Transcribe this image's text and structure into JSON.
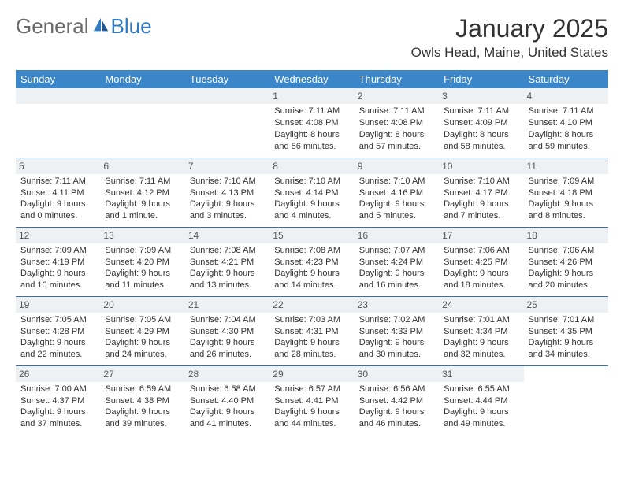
{
  "brand": {
    "word1": "General",
    "word2": "Blue"
  },
  "title": "January 2025",
  "location": "Owls Head, Maine, United States",
  "colors": {
    "header_bg": "#3a86c8",
    "header_text": "#ffffff",
    "daynum_bg": "#eef1f4",
    "rule": "#3a6ea5",
    "brand_gray": "#6a6a6a",
    "brand_blue": "#2f7bc1"
  },
  "weekdays": [
    "Sunday",
    "Monday",
    "Tuesday",
    "Wednesday",
    "Thursday",
    "Friday",
    "Saturday"
  ],
  "weeks": [
    [
      null,
      null,
      null,
      {
        "n": "1",
        "sr": "7:11 AM",
        "ss": "4:08 PM",
        "dl": "8 hours and 56 minutes."
      },
      {
        "n": "2",
        "sr": "7:11 AM",
        "ss": "4:08 PM",
        "dl": "8 hours and 57 minutes."
      },
      {
        "n": "3",
        "sr": "7:11 AM",
        "ss": "4:09 PM",
        "dl": "8 hours and 58 minutes."
      },
      {
        "n": "4",
        "sr": "7:11 AM",
        "ss": "4:10 PM",
        "dl": "8 hours and 59 minutes."
      }
    ],
    [
      {
        "n": "5",
        "sr": "7:11 AM",
        "ss": "4:11 PM",
        "dl": "9 hours and 0 minutes."
      },
      {
        "n": "6",
        "sr": "7:11 AM",
        "ss": "4:12 PM",
        "dl": "9 hours and 1 minute."
      },
      {
        "n": "7",
        "sr": "7:10 AM",
        "ss": "4:13 PM",
        "dl": "9 hours and 3 minutes."
      },
      {
        "n": "8",
        "sr": "7:10 AM",
        "ss": "4:14 PM",
        "dl": "9 hours and 4 minutes."
      },
      {
        "n": "9",
        "sr": "7:10 AM",
        "ss": "4:16 PM",
        "dl": "9 hours and 5 minutes."
      },
      {
        "n": "10",
        "sr": "7:10 AM",
        "ss": "4:17 PM",
        "dl": "9 hours and 7 minutes."
      },
      {
        "n": "11",
        "sr": "7:09 AM",
        "ss": "4:18 PM",
        "dl": "9 hours and 8 minutes."
      }
    ],
    [
      {
        "n": "12",
        "sr": "7:09 AM",
        "ss": "4:19 PM",
        "dl": "9 hours and 10 minutes."
      },
      {
        "n": "13",
        "sr": "7:09 AM",
        "ss": "4:20 PM",
        "dl": "9 hours and 11 minutes."
      },
      {
        "n": "14",
        "sr": "7:08 AM",
        "ss": "4:21 PM",
        "dl": "9 hours and 13 minutes."
      },
      {
        "n": "15",
        "sr": "7:08 AM",
        "ss": "4:23 PM",
        "dl": "9 hours and 14 minutes."
      },
      {
        "n": "16",
        "sr": "7:07 AM",
        "ss": "4:24 PM",
        "dl": "9 hours and 16 minutes."
      },
      {
        "n": "17",
        "sr": "7:06 AM",
        "ss": "4:25 PM",
        "dl": "9 hours and 18 minutes."
      },
      {
        "n": "18",
        "sr": "7:06 AM",
        "ss": "4:26 PM",
        "dl": "9 hours and 20 minutes."
      }
    ],
    [
      {
        "n": "19",
        "sr": "7:05 AM",
        "ss": "4:28 PM",
        "dl": "9 hours and 22 minutes."
      },
      {
        "n": "20",
        "sr": "7:05 AM",
        "ss": "4:29 PM",
        "dl": "9 hours and 24 minutes."
      },
      {
        "n": "21",
        "sr": "7:04 AM",
        "ss": "4:30 PM",
        "dl": "9 hours and 26 minutes."
      },
      {
        "n": "22",
        "sr": "7:03 AM",
        "ss": "4:31 PM",
        "dl": "9 hours and 28 minutes."
      },
      {
        "n": "23",
        "sr": "7:02 AM",
        "ss": "4:33 PM",
        "dl": "9 hours and 30 minutes."
      },
      {
        "n": "24",
        "sr": "7:01 AM",
        "ss": "4:34 PM",
        "dl": "9 hours and 32 minutes."
      },
      {
        "n": "25",
        "sr": "7:01 AM",
        "ss": "4:35 PM",
        "dl": "9 hours and 34 minutes."
      }
    ],
    [
      {
        "n": "26",
        "sr": "7:00 AM",
        "ss": "4:37 PM",
        "dl": "9 hours and 37 minutes."
      },
      {
        "n": "27",
        "sr": "6:59 AM",
        "ss": "4:38 PM",
        "dl": "9 hours and 39 minutes."
      },
      {
        "n": "28",
        "sr": "6:58 AM",
        "ss": "4:40 PM",
        "dl": "9 hours and 41 minutes."
      },
      {
        "n": "29",
        "sr": "6:57 AM",
        "ss": "4:41 PM",
        "dl": "9 hours and 44 minutes."
      },
      {
        "n": "30",
        "sr": "6:56 AM",
        "ss": "4:42 PM",
        "dl": "9 hours and 46 minutes."
      },
      {
        "n": "31",
        "sr": "6:55 AM",
        "ss": "4:44 PM",
        "dl": "9 hours and 49 minutes."
      },
      null
    ]
  ],
  "labels": {
    "sunrise": "Sunrise:",
    "sunset": "Sunset:",
    "daylight": "Daylight:"
  }
}
